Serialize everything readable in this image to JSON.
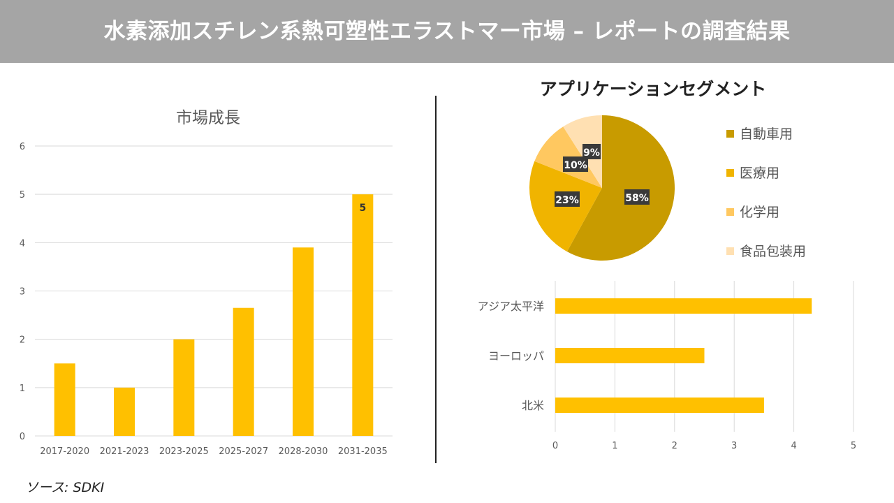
{
  "title": "水素添加スチレン系熱可塑性エラストマー市場 – レポートの調査結果",
  "source": "ソース: SDKI",
  "chart_data": [
    {
      "type": "bar",
      "title": "市場成長",
      "categories": [
        "2017-2020",
        "2021-2023",
        "2023-2025",
        "2025-2027",
        "2028-2030",
        "2031-2035"
      ],
      "values": [
        1.5,
        1.0,
        2.0,
        2.65,
        3.9,
        5
      ],
      "ylim": [
        0,
        6
      ],
      "yticks": [
        0,
        1,
        2,
        3,
        4,
        5,
        6
      ],
      "data_labels": {
        "2031-2035": "5"
      },
      "grid": true,
      "color": "#FFC000"
    },
    {
      "type": "pie",
      "title": "アプリケーションセグメント",
      "labels": [
        "自動車用",
        "医療用",
        "化学用",
        "食品包装用"
      ],
      "values": [
        58,
        23,
        10,
        9
      ],
      "value_labels": [
        "58%",
        "23%",
        "10%",
        "9%"
      ],
      "colors": [
        "#C89B00",
        "#F0B400",
        "#FFC860",
        "#FFE0B2"
      ],
      "legend": "right"
    },
    {
      "type": "bar",
      "orientation": "horizontal",
      "categories": [
        "アジア太平洋",
        "ヨーロッパ",
        "北米"
      ],
      "values": [
        4.3,
        2.5,
        3.5
      ],
      "xlim": [
        0,
        5
      ],
      "xticks": [
        0,
        1,
        2,
        3,
        4,
        5
      ],
      "grid": true,
      "color": "#FFC000"
    }
  ]
}
